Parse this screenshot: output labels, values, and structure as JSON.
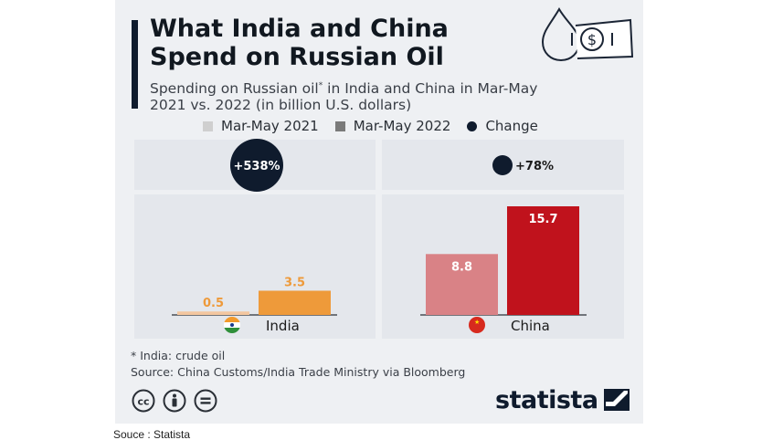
{
  "title_line1": "What India and China",
  "title_line2": "Spend on Russian Oil",
  "subtitle_part1": "Spending on Russian oil",
  "subtitle_mark": "*",
  "subtitle_part2": " in India and China in Mar-May",
  "subtitle_line2": "2021 vs. 2022  (in billion U.S. dollars)",
  "colors": {
    "india_2021": "#f3c7a0",
    "india_2022": "#ee9a3a",
    "china_2021": "#d98286",
    "china_2022": "#c0121c",
    "change": "#0f1b2d",
    "legend_2021": "#cfcfcf",
    "legend_2022": "#7a7a7a"
  },
  "legend": [
    {
      "label": "Mar-May 2021",
      "color": "#cfcfcf",
      "shape": "square"
    },
    {
      "label": "Mar-May 2022",
      "color": "#7a7a7a",
      "shape": "square"
    },
    {
      "label": "Change",
      "color": "#0f1b2d",
      "shape": "dot"
    }
  ],
  "chart_data": {
    "type": "bar",
    "title": "What India and China Spend on Russian Oil",
    "subtitle": "Spending on Russian oil* in India and China in Mar-May 2021 vs. 2022 (in billion U.S. dollars)",
    "categories": [
      "India",
      "China"
    ],
    "series": [
      {
        "name": "Mar-May 2021",
        "values": [
          0.5,
          8.8
        ],
        "labels": [
          "0.5",
          "8.8"
        ]
      },
      {
        "name": "Mar-May 2022",
        "values": [
          3.5,
          15.7
        ],
        "labels": [
          "3.5",
          "15.7"
        ]
      }
    ],
    "change": {
      "values": [
        538,
        78
      ],
      "labels": [
        "+538%",
        "+78%"
      ]
    },
    "ylim": [
      0,
      15.7
    ],
    "xlabel": "",
    "ylabel": "",
    "grid": false,
    "legend_position": "top"
  },
  "footnote_line1": "* India: crude oil",
  "footnote_line2": "Source: China Customs/India Trade Ministry via Bloomberg",
  "brand": "statista",
  "source_caption": "Souce : Statista"
}
